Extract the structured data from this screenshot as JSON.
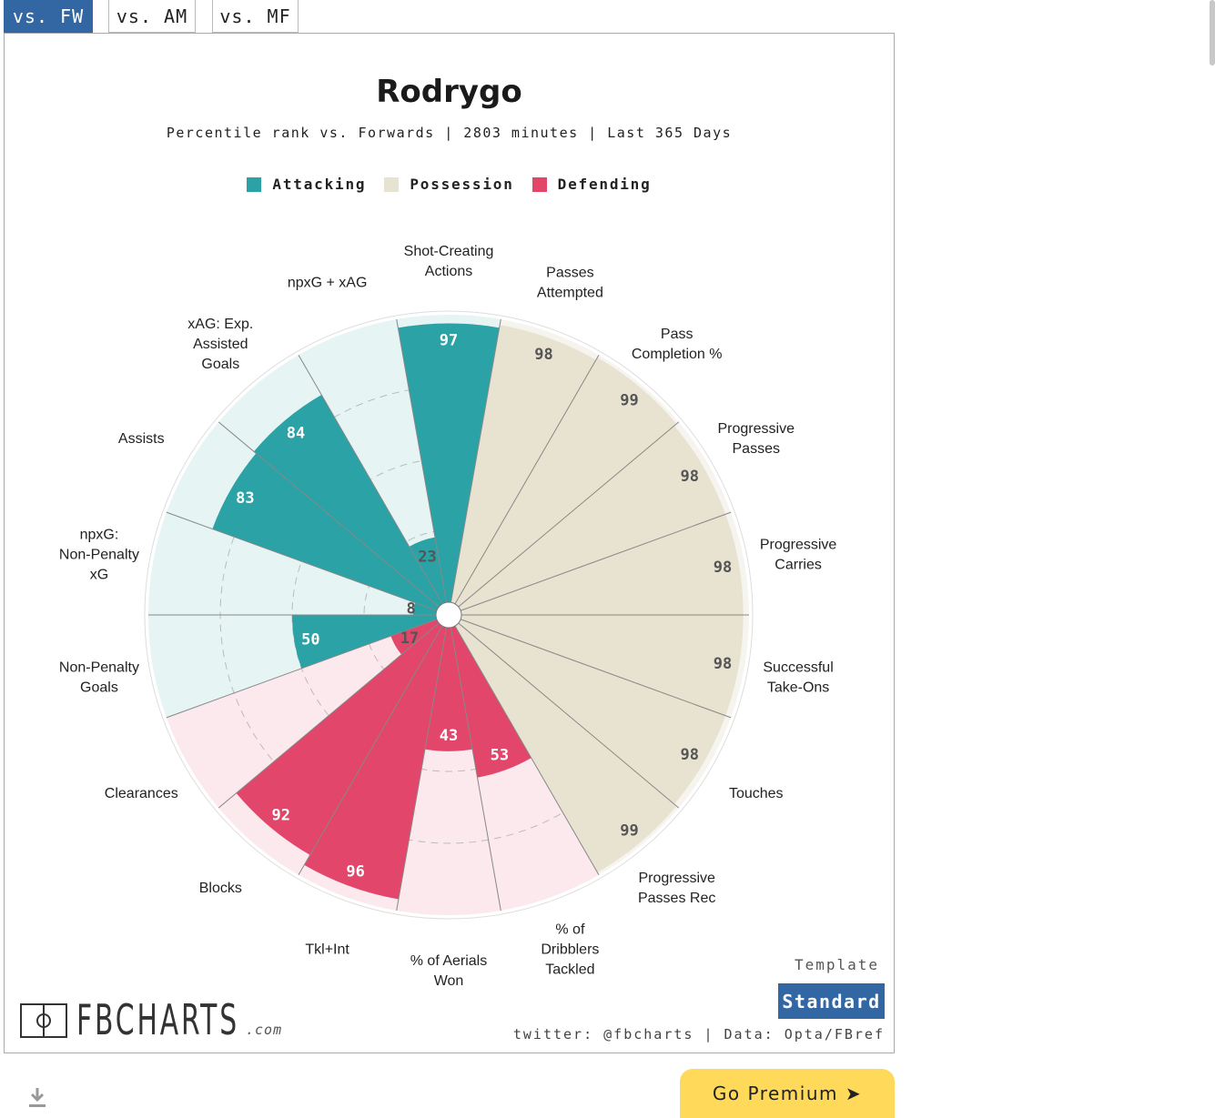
{
  "tabs": [
    {
      "label": "vs. FW",
      "active": true
    },
    {
      "label": "vs. AM",
      "active": false
    },
    {
      "label": "vs. MF",
      "active": false
    }
  ],
  "chart_title": "Rodrygo",
  "chart_subtitle": "Percentile rank vs. Forwards | 2803 minutes | Last 365 Days",
  "legend": [
    {
      "label": "Attacking",
      "color": "#2aa2a6"
    },
    {
      "label": "Possession",
      "color": "#e8e2d1"
    },
    {
      "label": "Defending",
      "color": "#e2466a"
    }
  ],
  "colors": {
    "attacking": "#2aa2a6",
    "attacking_bg": "#e6f4f4",
    "possession": "#e8e2d1",
    "possession_bg": "#f6f4ee",
    "defending": "#e2466a",
    "defending_bg": "#fbe9ee"
  },
  "chart_data": {
    "type": "polar_bar",
    "range": [
      0,
      100
    ],
    "categories": [
      {
        "label": "Shot-Creating Actions",
        "value": 97,
        "group": "attacking"
      },
      {
        "label": "Passes Attempted",
        "value": 98,
        "group": "possession"
      },
      {
        "label": "Pass Completion %",
        "value": 99,
        "group": "possession"
      },
      {
        "label": "Progressive Passes",
        "value": 98,
        "group": "possession"
      },
      {
        "label": "Progressive Carries",
        "value": 98,
        "group": "possession"
      },
      {
        "label": "Successful Take-Ons",
        "value": 98,
        "group": "possession"
      },
      {
        "label": "Touches",
        "value": 98,
        "group": "possession"
      },
      {
        "label": "Progressive Passes Rec",
        "value": 99,
        "group": "possession"
      },
      {
        "label": "% of Dribblers Tackled",
        "value": 53,
        "group": "defending"
      },
      {
        "label": "% of Aerials Won",
        "value": 43,
        "group": "defending"
      },
      {
        "label": "Tkl+Int",
        "value": 96,
        "group": "defending"
      },
      {
        "label": "Blocks",
        "value": 92,
        "group": "defending"
      },
      {
        "label": "Clearances",
        "value": 17,
        "group": "defending"
      },
      {
        "label": "Non-Penalty Goals",
        "value": 50,
        "group": "attacking"
      },
      {
        "label": "npxG: Non-Penalty xG",
        "value": 8,
        "group": "attacking"
      },
      {
        "label": "Assists",
        "value": 83,
        "group": "attacking"
      },
      {
        "label": "xAG: Exp. Assisted Goals",
        "value": 84,
        "group": "attacking"
      },
      {
        "label": "npxG + xAG",
        "value": 23,
        "group": "attacking"
      }
    ]
  },
  "template": {
    "label": "Template",
    "value": "Standard"
  },
  "credits": "twitter: @fbcharts | Data: Opta/FBref",
  "logo": {
    "text": "FBCHARTS",
    "suffix": ".com"
  },
  "premium_label": "Go Premium ➤",
  "icons": {
    "download": "download-icon",
    "logo_mark": "pitch-icon"
  }
}
